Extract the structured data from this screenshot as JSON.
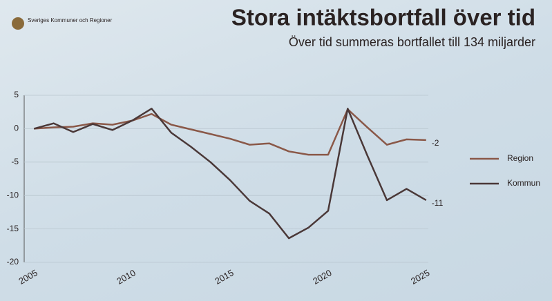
{
  "logo": "Sveriges Kommuner och Regioner",
  "chart_data": {
    "type": "line",
    "title": "Stora intäktsbortfall över tid",
    "subtitle": "Över tid summeras bortfallet till 134 miljarder",
    "x": [
      2005,
      2006,
      2007,
      2008,
      2009,
      2010,
      2011,
      2012,
      2013,
      2014,
      2015,
      2016,
      2017,
      2018,
      2019,
      2020,
      2021,
      2022,
      2023,
      2024,
      2025
    ],
    "series": [
      {
        "name": "Region",
        "color": "#8a5848",
        "values": [
          0,
          0.2,
          0.3,
          0.8,
          0.6,
          1.2,
          2.2,
          0.6,
          -0.1,
          -0.8,
          -1.5,
          -2.4,
          -2.2,
          -3.4,
          -3.9,
          -3.9,
          2.9,
          0.2,
          -2.4,
          -1.6,
          -1.7
        ],
        "value_labels": [
          null,
          null,
          null,
          null,
          null,
          null,
          null,
          null,
          null,
          null,
          null,
          null,
          null,
          null,
          null,
          null,
          null,
          null,
          null,
          null,
          "-2"
        ]
      },
      {
        "name": "Kommun",
        "color": "#4a3838",
        "values": [
          0,
          0.8,
          -0.5,
          0.7,
          -0.2,
          1.2,
          3,
          -0.6,
          -2.7,
          -5,
          -7.7,
          -10.8,
          -12.7,
          -16.4,
          -14.8,
          -12.3,
          3,
          -4,
          -10.7,
          -9,
          -10.7
        ],
        "value_labels": [
          null,
          null,
          null,
          null,
          null,
          null,
          null,
          null,
          null,
          null,
          null,
          null,
          null,
          null,
          null,
          null,
          null,
          null,
          null,
          null,
          "-11"
        ]
      }
    ],
    "xlim": [
      2004.5,
      2025.5
    ],
    "xticks": [
      2005,
      2010,
      2015,
      2020,
      2025
    ],
    "ylim": [
      -20,
      5
    ],
    "yticks": [
      5,
      0,
      -5,
      -10,
      -15,
      -20
    ],
    "grid": true,
    "legend": "right"
  }
}
